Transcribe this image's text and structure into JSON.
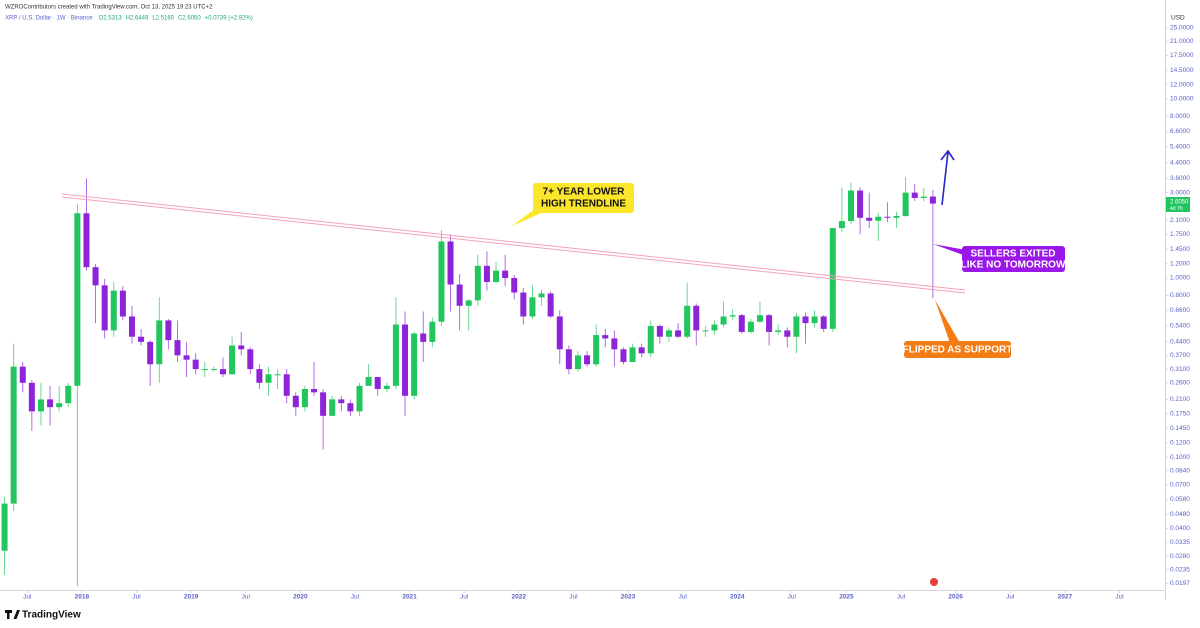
{
  "chart_data": {
    "type": "candlestick",
    "title": "WZROContributors created with TradingView.com, Oct 13, 2025 19:23 UTC+2",
    "symbol": "XRP / U.S. Dollar · 1W · Binance",
    "legend_values": [
      "O2.5313",
      "H2.6449",
      "L2.5160",
      "C2.6050",
      "+0.0739 (+2.92%)"
    ],
    "currency": "USD",
    "last_price_label": "2.6050",
    "countdown": "4d 7h",
    "brand": "TradingView",
    "log_scale": true,
    "grid": false,
    "up_color": "#22c55e",
    "down_color": "#8e24d8",
    "annotations": [
      {
        "lines": [
          "7+ YEAR LOWER",
          "HIGH TRENDLINE"
        ],
        "color": "#fbe62c"
      },
      {
        "lines": [
          "SELLERS EXITED",
          "LIKE NO TOMORROW"
        ],
        "color": "#9b17e8"
      },
      {
        "lines": [
          "FLIPPED AS SUPPORT"
        ],
        "color": "#f47c14"
      }
    ],
    "x": [
      "2017-04",
      "2017-05",
      "2017-06",
      "2017-07",
      "2017-08",
      "2017-09",
      "2017-10",
      "2017-11",
      "2017-12",
      "2018-01",
      "2018-02",
      "2018-03",
      "2018-04",
      "2018-05",
      "2018-06",
      "2018-07",
      "2018-08",
      "2018-09",
      "2018-10",
      "2018-11",
      "2018-12",
      "2019-01",
      "2019-02",
      "2019-03",
      "2019-04",
      "2019-05",
      "2019-06",
      "2019-07",
      "2019-08",
      "2019-09",
      "2019-10",
      "2019-11",
      "2019-12",
      "2020-01",
      "2020-02",
      "2020-03",
      "2020-04",
      "2020-05",
      "2020-06",
      "2020-07",
      "2020-08",
      "2020-09",
      "2020-10",
      "2020-11",
      "2020-12",
      "2021-01",
      "2021-02",
      "2021-03",
      "2021-04",
      "2021-05",
      "2021-06",
      "2021-07",
      "2021-08",
      "2021-09",
      "2021-10",
      "2021-11",
      "2021-12",
      "2022-01",
      "2022-02",
      "2022-03",
      "2022-04",
      "2022-05",
      "2022-06",
      "2022-07",
      "2022-08",
      "2022-09",
      "2022-10",
      "2022-11",
      "2022-12",
      "2023-01",
      "2023-02",
      "2023-03",
      "2023-04",
      "2023-05",
      "2023-06",
      "2023-07",
      "2023-08",
      "2023-09",
      "2023-10",
      "2023-11",
      "2023-12",
      "2024-01",
      "2024-02",
      "2024-03",
      "2024-04",
      "2024-05",
      "2024-06",
      "2024-07",
      "2024-08",
      "2024-09",
      "2024-10",
      "2024-11",
      "2024-12",
      "2025-01",
      "2025-02",
      "2025-03",
      "2025-04",
      "2025-05",
      "2025-06",
      "2025-07",
      "2025-08",
      "2025-09",
      "2025-10"
    ],
    "open": [
      0.03,
      0.055,
      0.32,
      0.26,
      0.18,
      0.21,
      0.19,
      0.2,
      0.25,
      2.3,
      1.15,
      0.91,
      0.51,
      0.85,
      0.61,
      0.47,
      0.44,
      0.33,
      0.58,
      0.45,
      0.37,
      0.35,
      0.31,
      0.31,
      0.31,
      0.29,
      0.42,
      0.4,
      0.31,
      0.26,
      0.29,
      0.29,
      0.22,
      0.19,
      0.24,
      0.23,
      0.17,
      0.21,
      0.2,
      0.18,
      0.25,
      0.28,
      0.24,
      0.25,
      0.55,
      0.22,
      0.49,
      0.44,
      0.57,
      1.6,
      0.92,
      0.7,
      0.75,
      1.17,
      0.95,
      1.1,
      1.0,
      0.83,
      0.61,
      0.78,
      0.82,
      0.61,
      0.4,
      0.31,
      0.37,
      0.33,
      0.48,
      0.46,
      0.4,
      0.34,
      0.41,
      0.38,
      0.54,
      0.47,
      0.51,
      0.47,
      0.7,
      0.51,
      0.51,
      0.55,
      0.61,
      0.62,
      0.5,
      0.57,
      0.62,
      0.5,
      0.51,
      0.47,
      0.61,
      0.56,
      0.61,
      0.52,
      1.9,
      2.08,
      3.08,
      2.17,
      2.09,
      2.2,
      2.17,
      2.22,
      3.0,
      2.8,
      2.85
    ],
    "high": [
      0.06,
      0.43,
      0.34,
      0.27,
      0.26,
      0.25,
      0.25,
      0.26,
      2.6,
      3.6,
      1.2,
      0.99,
      0.95,
      0.9,
      0.7,
      0.52,
      0.45,
      0.78,
      0.59,
      0.58,
      0.44,
      0.38,
      0.34,
      0.32,
      0.36,
      0.47,
      0.5,
      0.41,
      0.33,
      0.32,
      0.31,
      0.31,
      0.23,
      0.25,
      0.34,
      0.24,
      0.22,
      0.22,
      0.21,
      0.26,
      0.33,
      0.28,
      0.26,
      0.78,
      0.65,
      0.5,
      0.65,
      0.6,
      1.85,
      1.75,
      1.05,
      0.76,
      1.35,
      1.41,
      1.23,
      1.35,
      1.04,
      0.88,
      0.91,
      0.86,
      0.84,
      0.66,
      0.42,
      0.39,
      0.39,
      0.55,
      0.52,
      0.51,
      0.41,
      0.43,
      0.43,
      0.58,
      0.55,
      0.53,
      0.56,
      0.94,
      0.72,
      0.54,
      0.58,
      0.74,
      0.67,
      0.63,
      0.59,
      0.74,
      0.63,
      0.55,
      0.53,
      0.64,
      0.64,
      0.66,
      0.62,
      1.91,
      3.2,
      3.4,
      3.2,
      3.0,
      2.3,
      2.65,
      2.35,
      3.66,
      3.35,
      3.18,
      3.1
    ],
    "low": [
      0.022,
      0.05,
      0.23,
      0.14,
      0.15,
      0.15,
      0.18,
      0.19,
      0.019,
      1.1,
      0.56,
      0.46,
      0.47,
      0.58,
      0.43,
      0.42,
      0.25,
      0.26,
      0.4,
      0.34,
      0.28,
      0.29,
      0.28,
      0.3,
      0.28,
      0.29,
      0.37,
      0.29,
      0.24,
      0.22,
      0.24,
      0.2,
      0.17,
      0.18,
      0.22,
      0.11,
      0.17,
      0.18,
      0.17,
      0.17,
      0.25,
      0.22,
      0.23,
      0.24,
      0.17,
      0.21,
      0.34,
      0.41,
      0.54,
      0.65,
      0.51,
      0.51,
      0.7,
      0.85,
      0.93,
      0.9,
      0.76,
      0.55,
      0.59,
      0.7,
      0.6,
      0.33,
      0.29,
      0.3,
      0.32,
      0.32,
      0.41,
      0.32,
      0.33,
      0.34,
      0.36,
      0.36,
      0.43,
      0.44,
      0.46,
      0.46,
      0.42,
      0.47,
      0.48,
      0.53,
      0.58,
      0.49,
      0.49,
      0.56,
      0.42,
      0.48,
      0.41,
      0.38,
      0.43,
      0.53,
      0.5,
      0.5,
      1.8,
      2.0,
      1.75,
      1.9,
      1.61,
      2.05,
      1.91,
      2.2,
      2.7,
      2.68,
      0.77
    ],
    "close": [
      0.055,
      0.32,
      0.26,
      0.18,
      0.21,
      0.19,
      0.2,
      0.25,
      2.3,
      1.15,
      0.91,
      0.51,
      0.85,
      0.61,
      0.47,
      0.44,
      0.33,
      0.58,
      0.45,
      0.37,
      0.35,
      0.31,
      0.31,
      0.31,
      0.29,
      0.42,
      0.4,
      0.31,
      0.26,
      0.29,
      0.29,
      0.22,
      0.19,
      0.24,
      0.23,
      0.17,
      0.21,
      0.2,
      0.18,
      0.25,
      0.28,
      0.24,
      0.25,
      0.55,
      0.22,
      0.49,
      0.44,
      0.57,
      1.6,
      0.92,
      0.7,
      0.75,
      1.17,
      0.95,
      1.1,
      1.0,
      0.83,
      0.61,
      0.78,
      0.82,
      0.61,
      0.4,
      0.31,
      0.37,
      0.33,
      0.48,
      0.46,
      0.4,
      0.34,
      0.41,
      0.38,
      0.54,
      0.47,
      0.51,
      0.47,
      0.7,
      0.51,
      0.51,
      0.55,
      0.61,
      0.62,
      0.5,
      0.57,
      0.62,
      0.5,
      0.51,
      0.47,
      0.61,
      0.56,
      0.61,
      0.52,
      1.9,
      2.08,
      3.08,
      2.17,
      2.09,
      2.2,
      2.17,
      2.22,
      3.0,
      2.8,
      2.85,
      2.605
    ],
    "xlim": [
      "2017-04",
      "2027-12"
    ],
    "xticks": [
      {
        "value": "2017-07",
        "label": "Jul"
      },
      {
        "value": "2018-01",
        "label": "2018"
      },
      {
        "value": "2018-07",
        "label": "Jul"
      },
      {
        "value": "2019-01",
        "label": "2019"
      },
      {
        "value": "2019-07",
        "label": "Jul"
      },
      {
        "value": "2020-01",
        "label": "2020"
      },
      {
        "value": "2020-07",
        "label": "Jul"
      },
      {
        "value": "2021-01",
        "label": "2021"
      },
      {
        "value": "2021-07",
        "label": "Jul"
      },
      {
        "value": "2022-01",
        "label": "2022"
      },
      {
        "value": "2022-07",
        "label": "Jul"
      },
      {
        "value": "2023-01",
        "label": "2023"
      },
      {
        "value": "2023-07",
        "label": "Jul"
      },
      {
        "value": "2024-01",
        "label": "2024"
      },
      {
        "value": "2024-07",
        "label": "Jul"
      },
      {
        "value": "2025-01",
        "label": "2025"
      },
      {
        "value": "2025-07",
        "label": "Jul"
      },
      {
        "value": "2026-01",
        "label": "2026"
      },
      {
        "value": "2026-07",
        "label": "Jul"
      },
      {
        "value": "2027-01",
        "label": "2027"
      },
      {
        "value": "2027-07",
        "label": "Jul"
      }
    ],
    "ylim": [
      0.0181,
      31.4
    ],
    "yticks": [
      {
        "value": 25,
        "label": "25.0000"
      },
      {
        "value": 21,
        "label": "21.0000"
      },
      {
        "value": 17.5,
        "label": "17.5000"
      },
      {
        "value": 14.5,
        "label": "14.5000"
      },
      {
        "value": 12,
        "label": "12.0000"
      },
      {
        "value": 10,
        "label": "10.0000"
      },
      {
        "value": 8,
        "label": "8.0000"
      },
      {
        "value": 6.6,
        "label": "6.6000"
      },
      {
        "value": 5.4,
        "label": "5.4000"
      },
      {
        "value": 4.4,
        "label": "4.4000"
      },
      {
        "value": 3.6,
        "label": "3.6000"
      },
      {
        "value": 3,
        "label": "3.0000"
      },
      {
        "value": 2.1,
        "label": "2.1000"
      },
      {
        "value": 1.75,
        "label": "1.7500"
      },
      {
        "value": 1.45,
        "label": "1.4500"
      },
      {
        "value": 1.2,
        "label": "1.2000"
      },
      {
        "value": 1,
        "label": "1.0000"
      },
      {
        "value": 0.8,
        "label": "0.8000"
      },
      {
        "value": 0.66,
        "label": "0.6600"
      },
      {
        "value": 0.54,
        "label": "0.5400"
      },
      {
        "value": 0.44,
        "label": "0.4400"
      },
      {
        "value": 0.37,
        "label": "0.3700"
      },
      {
        "value": 0.31,
        "label": "0.3100"
      },
      {
        "value": 0.26,
        "label": "0.2600"
      },
      {
        "value": 0.21,
        "label": "0.2100"
      },
      {
        "value": 0.175,
        "label": "0.1750"
      },
      {
        "value": 0.145,
        "label": "0.1450"
      },
      {
        "value": 0.12,
        "label": "0.1200"
      },
      {
        "value": 0.1,
        "label": "0.1000"
      },
      {
        "value": 0.084,
        "label": "0.0840"
      },
      {
        "value": 0.07,
        "label": "0.0700"
      },
      {
        "value": 0.058,
        "label": "0.0580"
      },
      {
        "value": 0.048,
        "label": "0.0480"
      },
      {
        "value": 0.04,
        "label": "0.0400"
      },
      {
        "value": 0.0335,
        "label": "0.0335"
      },
      {
        "value": 0.028,
        "label": "0.0280"
      },
      {
        "value": 0.0235,
        "label": "0.0235"
      },
      {
        "value": 0.0197,
        "label": "0.0197"
      }
    ]
  }
}
